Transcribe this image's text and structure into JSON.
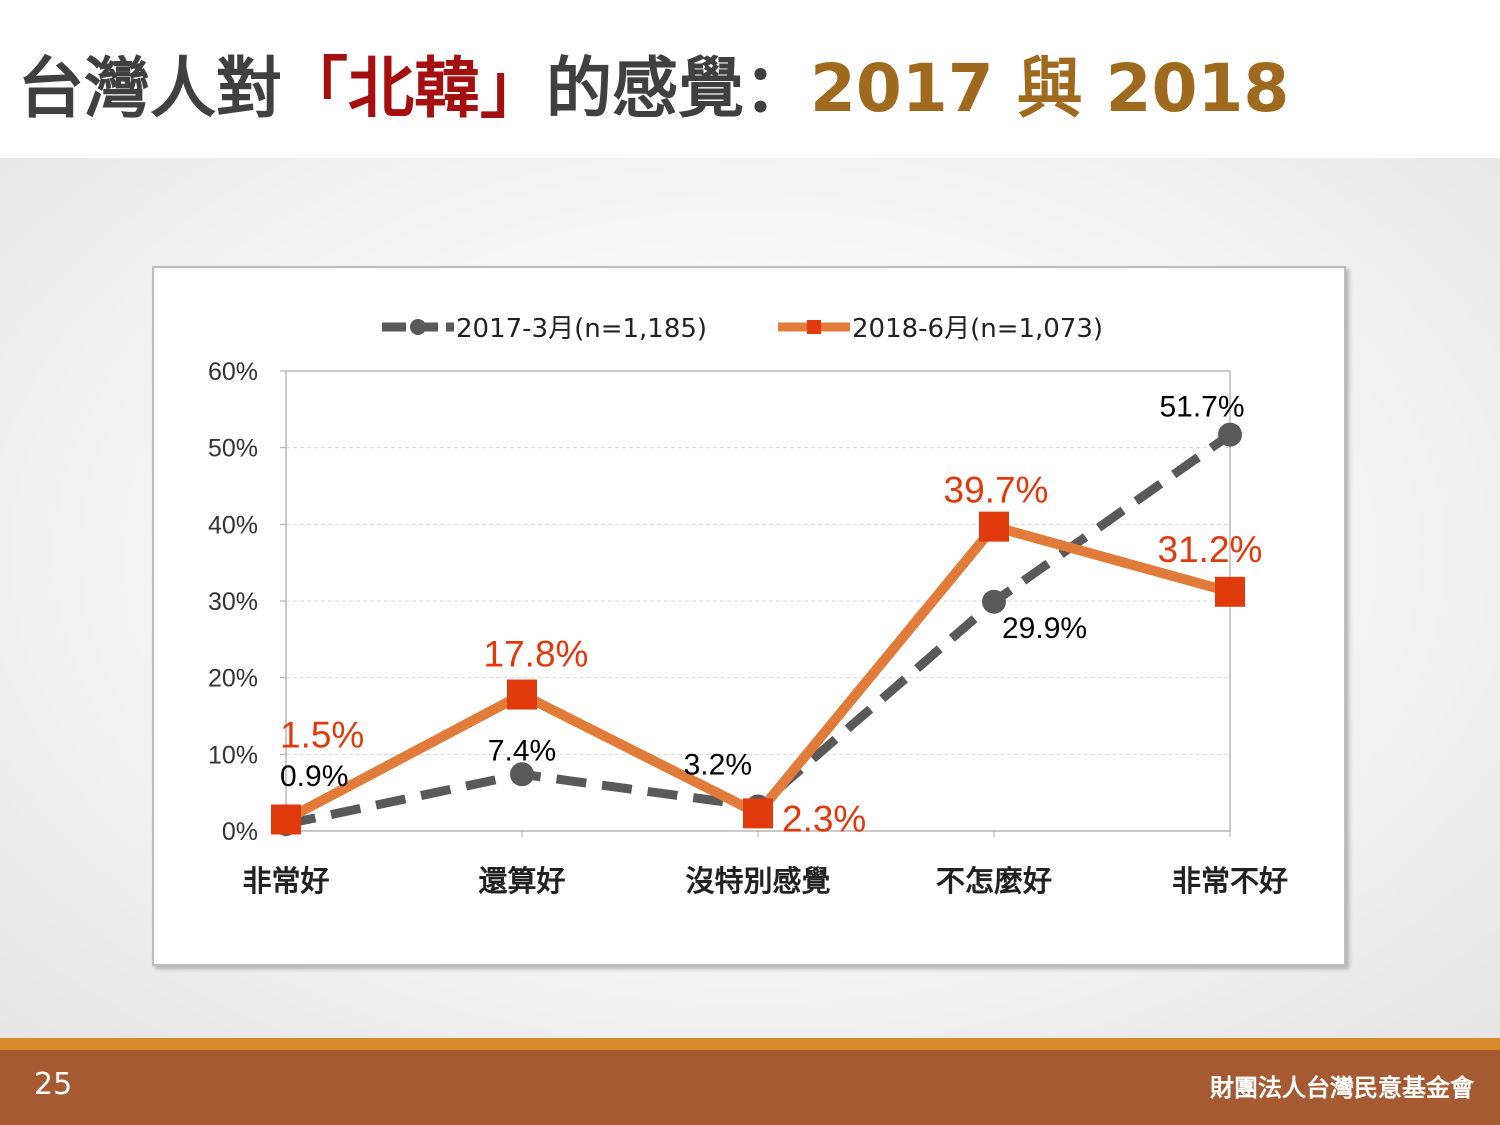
{
  "slide": {
    "title_part1": "台灣人對",
    "title_part2": "「北韓」",
    "title_part3": "的感覺：",
    "title_part4": "2017 與 2018",
    "page_number": "25",
    "organization": "財團法人台灣民意基金會",
    "colors": {
      "title_text": "#404040",
      "title_accent_red": "#a50f0f",
      "title_accent_gold": "#a06a1e",
      "footer": "#a65a32",
      "footer_stripe": "#d58b2c"
    }
  },
  "chart_data": {
    "type": "line",
    "categories": [
      "非常好",
      "還算好",
      "沒特別感覺",
      "不怎麼好",
      "非常不好"
    ],
    "series": [
      {
        "name": "2017-3月(n=1,185)",
        "values": [
          0.9,
          7.4,
          3.2,
          29.9,
          51.7
        ],
        "labels": [
          "0.9%",
          "7.4%",
          "3.2%",
          "29.9%",
          "51.7%"
        ],
        "color": "#595959",
        "line_style": "dashed",
        "marker": "circle",
        "label_color": "#000000"
      },
      {
        "name": "2018-6月(n=1,073)",
        "values": [
          1.5,
          17.8,
          2.3,
          39.7,
          31.2
        ],
        "labels": [
          "1.5%",
          "17.8%",
          "2.3%",
          "39.7%",
          "31.2%"
        ],
        "color": "#e07b39",
        "marker_color": "#e03a0c",
        "line_style": "solid",
        "marker": "square",
        "label_color": "#e03a0c"
      }
    ],
    "y_ticks": [
      "0%",
      "10%",
      "20%",
      "30%",
      "40%",
      "50%",
      "60%"
    ],
    "ylim": [
      0,
      60
    ],
    "grid": true,
    "legend_position": "top"
  }
}
